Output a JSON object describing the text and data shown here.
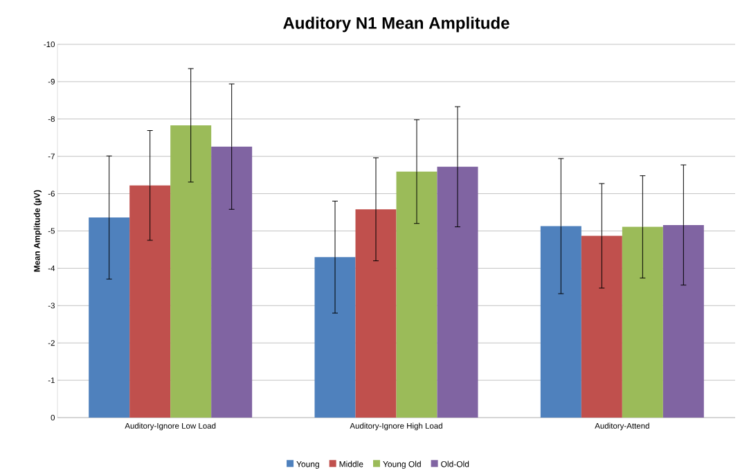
{
  "chart_data": {
    "type": "bar",
    "title": "Auditory N1 Mean Amplitude",
    "ylabel": "Mean Amplitude (µV)",
    "categories": [
      "Auditory-Ignore Low Load",
      "Auditory-Ignore High Load",
      "Auditory-Attend"
    ],
    "series": [
      {
        "name": "Young",
        "color": "#4f81bd",
        "values": [
          -5.36,
          -4.3,
          -5.13
        ],
        "errors": [
          1.65,
          1.5,
          1.81
        ]
      },
      {
        "name": "Middle",
        "color": "#c0504d",
        "values": [
          -6.22,
          -5.58,
          -4.87
        ],
        "errors": [
          1.47,
          1.38,
          1.4
        ]
      },
      {
        "name": "Young Old",
        "color": "#9bbb59",
        "values": [
          -7.83,
          -6.59,
          -5.11
        ],
        "errors": [
          1.52,
          1.39,
          1.37
        ]
      },
      {
        "name": "Old-Old",
        "color": "#8064a2",
        "values": [
          -7.26,
          -6.72,
          -5.16
        ],
        "errors": [
          1.68,
          1.61,
          1.61
        ]
      }
    ],
    "ylim": [
      0,
      -10
    ],
    "yticks": [
      -10,
      -9,
      -8,
      -7,
      -6,
      -5,
      -4,
      -3,
      -2,
      -1,
      0
    ],
    "grid": "y",
    "legend": "bottom"
  }
}
